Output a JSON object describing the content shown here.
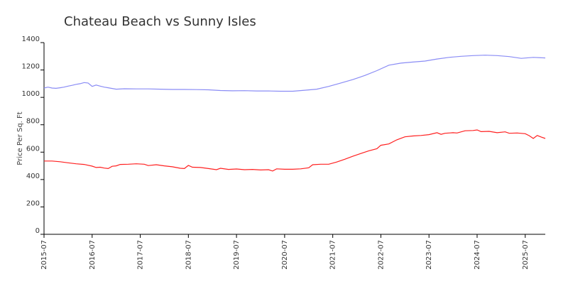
{
  "chart_data": {
    "type": "line",
    "title": "Chateau Beach vs Sunny Isles",
    "xlabel": "",
    "ylabel": "Price Per Sq. Ft",
    "ylim": [
      0,
      1400
    ],
    "yticks": [
      0,
      200,
      400,
      600,
      800,
      1000,
      1200,
      1400
    ],
    "xlim": [
      "2015-07",
      "2025-12"
    ],
    "xticks": [
      "2015-07",
      "2016-07",
      "2017-07",
      "2018-07",
      "2019-07",
      "2020-07",
      "2021-07",
      "2022-07",
      "2023-07",
      "2024-07",
      "2025-07"
    ],
    "grid": false,
    "legend": "none",
    "series": [
      {
        "color": "#8a8cf5",
        "points": [
          [
            "2015-07",
            1068
          ],
          [
            "2015-08",
            1075
          ],
          [
            "2015-09",
            1068
          ],
          [
            "2015-10",
            1066
          ],
          [
            "2015-11",
            1070
          ],
          [
            "2015-12",
            1075
          ],
          [
            "2016-01",
            1082
          ],
          [
            "2016-02",
            1088
          ],
          [
            "2016-03",
            1095
          ],
          [
            "2016-04",
            1100
          ],
          [
            "2016-05",
            1108
          ],
          [
            "2016-06",
            1105
          ],
          [
            "2016-07",
            1080
          ],
          [
            "2016-08",
            1090
          ],
          [
            "2016-09",
            1082
          ],
          [
            "2016-10",
            1075
          ],
          [
            "2016-11",
            1070
          ],
          [
            "2016-12",
            1065
          ],
          [
            "2017-01",
            1060
          ],
          [
            "2017-03",
            1063
          ],
          [
            "2017-06",
            1062
          ],
          [
            "2017-09",
            1062
          ],
          [
            "2017-12",
            1060
          ],
          [
            "2018-03",
            1058
          ],
          [
            "2018-06",
            1058
          ],
          [
            "2018-09",
            1057
          ],
          [
            "2018-12",
            1055
          ],
          [
            "2019-03",
            1050
          ],
          [
            "2019-06",
            1048
          ],
          [
            "2019-09",
            1049
          ],
          [
            "2019-12",
            1047
          ],
          [
            "2020-03",
            1047
          ],
          [
            "2020-06",
            1045
          ],
          [
            "2020-09",
            1045
          ],
          [
            "2020-12",
            1052
          ],
          [
            "2021-03",
            1060
          ],
          [
            "2021-06",
            1080
          ],
          [
            "2021-09",
            1105
          ],
          [
            "2021-12",
            1130
          ],
          [
            "2022-03",
            1160
          ],
          [
            "2022-06",
            1195
          ],
          [
            "2022-09",
            1235
          ],
          [
            "2022-12",
            1250
          ],
          [
            "2023-03",
            1258
          ],
          [
            "2023-06",
            1265
          ],
          [
            "2023-09",
            1280
          ],
          [
            "2023-12",
            1292
          ],
          [
            "2024-03",
            1300
          ],
          [
            "2024-06",
            1305
          ],
          [
            "2024-09",
            1308
          ],
          [
            "2024-12",
            1305
          ],
          [
            "2025-03",
            1298
          ],
          [
            "2025-06",
            1285
          ],
          [
            "2025-09",
            1292
          ],
          [
            "2025-12",
            1288
          ]
        ]
      },
      {
        "color": "#ff2020",
        "points": [
          [
            "2015-07",
            535
          ],
          [
            "2015-09",
            535
          ],
          [
            "2015-11",
            530
          ],
          [
            "2016-01",
            522
          ],
          [
            "2016-03",
            515
          ],
          [
            "2016-05",
            510
          ],
          [
            "2016-07",
            498
          ],
          [
            "2016-08",
            488
          ],
          [
            "2016-09",
            490
          ],
          [
            "2016-10",
            484
          ],
          [
            "2016-11",
            480
          ],
          [
            "2016-12",
            497
          ],
          [
            "2017-01",
            500
          ],
          [
            "2017-02",
            510
          ],
          [
            "2017-04",
            512
          ],
          [
            "2017-06",
            515
          ],
          [
            "2017-08",
            512
          ],
          [
            "2017-09",
            502
          ],
          [
            "2017-11",
            508
          ],
          [
            "2018-01",
            500
          ],
          [
            "2018-03",
            493
          ],
          [
            "2018-05",
            482
          ],
          [
            "2018-06",
            480
          ],
          [
            "2018-07",
            503
          ],
          [
            "2018-08",
            490
          ],
          [
            "2018-10",
            488
          ],
          [
            "2018-12",
            480
          ],
          [
            "2019-02",
            472
          ],
          [
            "2019-03",
            482
          ],
          [
            "2019-05",
            474
          ],
          [
            "2019-07",
            477
          ],
          [
            "2019-09",
            472
          ],
          [
            "2019-11",
            474
          ],
          [
            "2020-01",
            470
          ],
          [
            "2020-03",
            472
          ],
          [
            "2020-04",
            462
          ],
          [
            "2020-05",
            478
          ],
          [
            "2020-07",
            475
          ],
          [
            "2020-09",
            475
          ],
          [
            "2020-11",
            478
          ],
          [
            "2021-01",
            486
          ],
          [
            "2021-02",
            508
          ],
          [
            "2021-04",
            512
          ],
          [
            "2021-06",
            512
          ],
          [
            "2021-08",
            528
          ],
          [
            "2021-10",
            548
          ],
          [
            "2021-12",
            570
          ],
          [
            "2022-02",
            590
          ],
          [
            "2022-04",
            610
          ],
          [
            "2022-06",
            625
          ],
          [
            "2022-07",
            650
          ],
          [
            "2022-09",
            660
          ],
          [
            "2022-11",
            690
          ],
          [
            "2023-01",
            712
          ],
          [
            "2023-03",
            718
          ],
          [
            "2023-05",
            722
          ],
          [
            "2023-07",
            728
          ],
          [
            "2023-09",
            742
          ],
          [
            "2023-10",
            730
          ],
          [
            "2023-11",
            738
          ],
          [
            "2024-01",
            742
          ],
          [
            "2024-02",
            740
          ],
          [
            "2024-04",
            756
          ],
          [
            "2024-06",
            758
          ],
          [
            "2024-07",
            762
          ],
          [
            "2024-08",
            750
          ],
          [
            "2024-10",
            752
          ],
          [
            "2024-12",
            742
          ],
          [
            "2025-02",
            748
          ],
          [
            "2025-03",
            738
          ],
          [
            "2025-05",
            740
          ],
          [
            "2025-07",
            735
          ],
          [
            "2025-08",
            720
          ],
          [
            "2025-09",
            700
          ],
          [
            "2025-10",
            722
          ],
          [
            "2025-11",
            710
          ],
          [
            "2025-12",
            700
          ]
        ]
      }
    ]
  }
}
